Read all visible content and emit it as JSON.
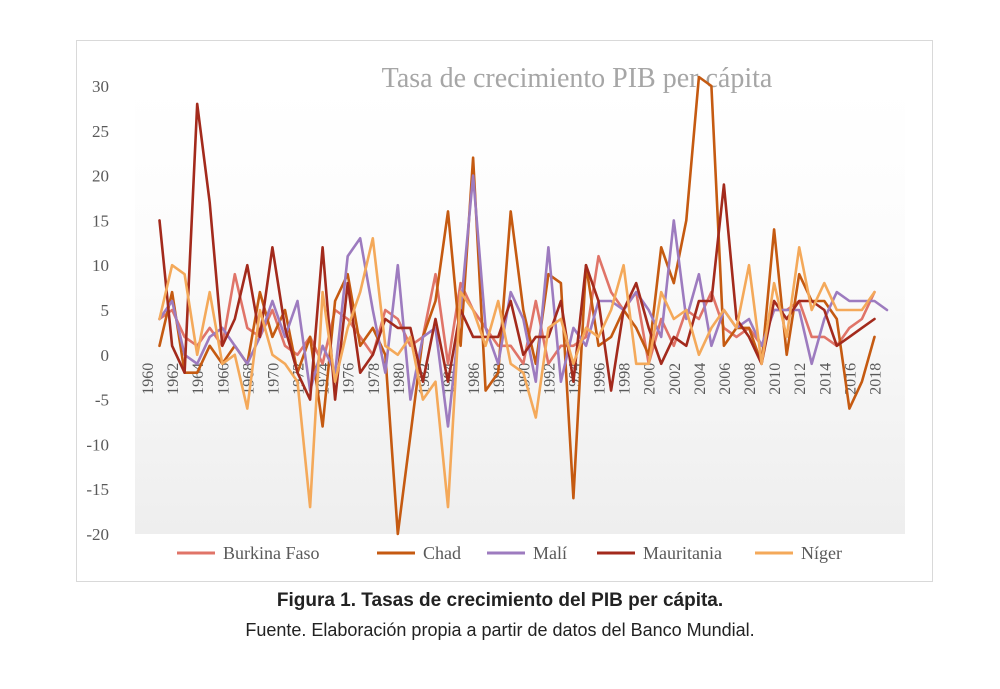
{
  "caption": {
    "title": "Figura 1. Tasas de crecimiento del PIB per cápita.",
    "source": "Fuente. Elaboración propia a partir de datos del Banco Mundial."
  },
  "chart_data": {
    "type": "line",
    "title": "Tasa de crecimiento PIB per cápita",
    "xlabel": "",
    "ylabel": "",
    "ylim": [
      -20,
      30
    ],
    "yticks": [
      30,
      25,
      20,
      15,
      10,
      5,
      0,
      -5,
      -10,
      -15,
      -20
    ],
    "xlim": [
      1960,
      2019
    ],
    "xticks": [
      1960,
      1962,
      1964,
      1966,
      1968,
      1970,
      1972,
      1974,
      1976,
      1978,
      1980,
      1982,
      1984,
      1986,
      1988,
      1990,
      1992,
      1994,
      1996,
      1998,
      2000,
      2002,
      2004,
      2006,
      2008,
      2010,
      2012,
      2014,
      2016,
      2018
    ],
    "grid": false,
    "legend_position": "bottom",
    "series": [
      {
        "name": "Burkina Faso",
        "color": "#e07468",
        "x": [
          1961,
          1962,
          1963,
          1964,
          1965,
          1966,
          1967,
          1968,
          1969,
          1970,
          1971,
          1972,
          1973,
          1974,
          1975,
          1976,
          1977,
          1978,
          1979,
          1980,
          1981,
          1982,
          1983,
          1984,
          1985,
          1986,
          1987,
          1988,
          1989,
          1990,
          1991,
          1992,
          1993,
          1994,
          1995,
          1996,
          1997,
          1998,
          1999,
          2000,
          2001,
          2002,
          2003,
          2004,
          2005,
          2006,
          2007,
          2008,
          2009,
          2010,
          2011,
          2012,
          2013,
          2014,
          2015,
          2016,
          2017,
          2018
        ],
        "values": [
          4,
          5,
          2,
          1,
          3,
          1,
          9,
          3,
          2,
          5,
          1,
          0,
          2,
          -1,
          5,
          4,
          2,
          0,
          5,
          4,
          1,
          2,
          9,
          -1,
          8,
          5,
          3,
          1,
          1,
          -1,
          6,
          -1,
          1,
          1,
          2,
          11,
          7,
          5,
          7,
          -1,
          4,
          1,
          5,
          4,
          7,
          3,
          2,
          3,
          1,
          5,
          5,
          6,
          2,
          2,
          1,
          3,
          4,
          7
        ]
      },
      {
        "name": "Chad",
        "color": "#c55a11",
        "x": [
          1961,
          1962,
          1963,
          1964,
          1965,
          1966,
          1967,
          1968,
          1969,
          1970,
          1971,
          1972,
          1973,
          1974,
          1975,
          1976,
          1977,
          1978,
          1979,
          1980,
          1981,
          1982,
          1983,
          1984,
          1985,
          1986,
          1987,
          1988,
          1989,
          1990,
          1991,
          1992,
          1993,
          1994,
          1995,
          1996,
          1997,
          1998,
          1999,
          2000,
          2001,
          2002,
          2003,
          2004,
          2005,
          2006,
          2007,
          2008,
          2009,
          2010,
          2011,
          2012,
          2013,
          2014,
          2015,
          2016,
          2017,
          2018
        ],
        "values": [
          1,
          7,
          -2,
          -2,
          1,
          -1,
          1,
          -1,
          7,
          2,
          5,
          -2,
          2,
          -8,
          6,
          9,
          1,
          3,
          0,
          -20,
          -9,
          2,
          6,
          16,
          1,
          22,
          -4,
          -2,
          16,
          5,
          -1,
          9,
          8,
          -16,
          10,
          1,
          2,
          5,
          3,
          0,
          12,
          8,
          15,
          31,
          30,
          1,
          3,
          3,
          -1,
          14,
          0,
          9,
          6,
          6,
          4,
          -6,
          -3,
          2
        ]
      },
      {
        "name": "Malí",
        "color": "#9d7bbf",
        "x": [
          1961,
          1962,
          1963,
          1964,
          1965,
          1966,
          1967,
          1968,
          1969,
          1970,
          1971,
          1972,
          1973,
          1974,
          1975,
          1976,
          1977,
          1978,
          1979,
          1980,
          1981,
          1982,
          1983,
          1984,
          1985,
          1986,
          1987,
          1988,
          1989,
          1990,
          1991,
          1992,
          1993,
          1994,
          1995,
          1996,
          1997,
          1998,
          1999,
          2000,
          2001,
          2002,
          2003,
          2004,
          2005,
          2006,
          2007,
          2008,
          2009,
          2010,
          2011,
          2012,
          2013,
          2014,
          2015,
          2016,
          2017,
          2018,
          2019
        ],
        "values": [
          4,
          6,
          0,
          -1,
          2,
          3,
          1,
          -1,
          2,
          6,
          2,
          6,
          -4,
          1,
          -2,
          11,
          13,
          5,
          -2,
          10,
          -5,
          2,
          3,
          -8,
          5,
          20,
          3,
          -1,
          7,
          4,
          -3,
          12,
          -3,
          3,
          1,
          6,
          6,
          5,
          7,
          5,
          2,
          15,
          4,
          9,
          1,
          5,
          3,
          4,
          1,
          5,
          5,
          5,
          -1,
          4,
          7,
          6,
          6,
          6,
          5
        ]
      },
      {
        "name": "Mauritania",
        "color": "#a32a1c",
        "x": [
          1961,
          1962,
          1963,
          1964,
          1965,
          1966,
          1967,
          1968,
          1969,
          1970,
          1971,
          1972,
          1973,
          1974,
          1975,
          1976,
          1977,
          1978,
          1979,
          1980,
          1981,
          1982,
          1983,
          1984,
          1985,
          1986,
          1987,
          1988,
          1989,
          1990,
          1991,
          1992,
          1993,
          1994,
          1995,
          1996,
          1997,
          1998,
          1999,
          2000,
          2001,
          2002,
          2003,
          2004,
          2005,
          2006,
          2007,
          2008,
          2009,
          2010,
          2011,
          2012,
          2013,
          2014,
          2015,
          2016,
          2017,
          2018
        ],
        "values": [
          15,
          1,
          -2,
          28,
          17,
          1,
          4,
          10,
          2,
          12,
          3,
          -2,
          -5,
          12,
          -5,
          8,
          -2,
          0,
          4,
          3,
          3,
          -3,
          4,
          -3,
          5,
          2,
          2,
          2,
          6,
          0,
          2,
          2,
          6,
          -3,
          10,
          6,
          -4,
          5,
          8,
          3,
          -1,
          2,
          1,
          6,
          6,
          19,
          4,
          2,
          -1,
          6,
          4,
          6,
          6,
          5,
          1,
          2,
          3,
          4
        ]
      },
      {
        "name": "Níger",
        "color": "#f4a95a",
        "x": [
          1961,
          1962,
          1963,
          1964,
          1965,
          1966,
          1967,
          1968,
          1969,
          1970,
          1971,
          1972,
          1973,
          1974,
          1975,
          1976,
          1977,
          1978,
          1979,
          1980,
          1981,
          1982,
          1983,
          1984,
          1985,
          1986,
          1987,
          1988,
          1989,
          1990,
          1991,
          1992,
          1993,
          1994,
          1995,
          1996,
          1997,
          1998,
          1999,
          2000,
          2001,
          2002,
          2003,
          2004,
          2005,
          2006,
          2007,
          2008,
          2009,
          2010,
          2011,
          2012,
          2013,
          2014,
          2015,
          2016,
          2017,
          2018
        ],
        "values": [
          4,
          10,
          9,
          0,
          7,
          -1,
          0,
          -6,
          5,
          0,
          -1,
          -3,
          -17,
          7,
          -3,
          3,
          7,
          13,
          1,
          0,
          2,
          -5,
          -3,
          -17,
          7,
          5,
          1,
          6,
          -1,
          -2,
          -7,
          3,
          4,
          -1,
          3,
          2,
          5,
          10,
          -1,
          -1,
          7,
          4,
          5,
          0,
          3,
          5,
          3,
          10,
          -1,
          8,
          2,
          12,
          5,
          8,
          5,
          5,
          5,
          7
        ]
      }
    ]
  }
}
